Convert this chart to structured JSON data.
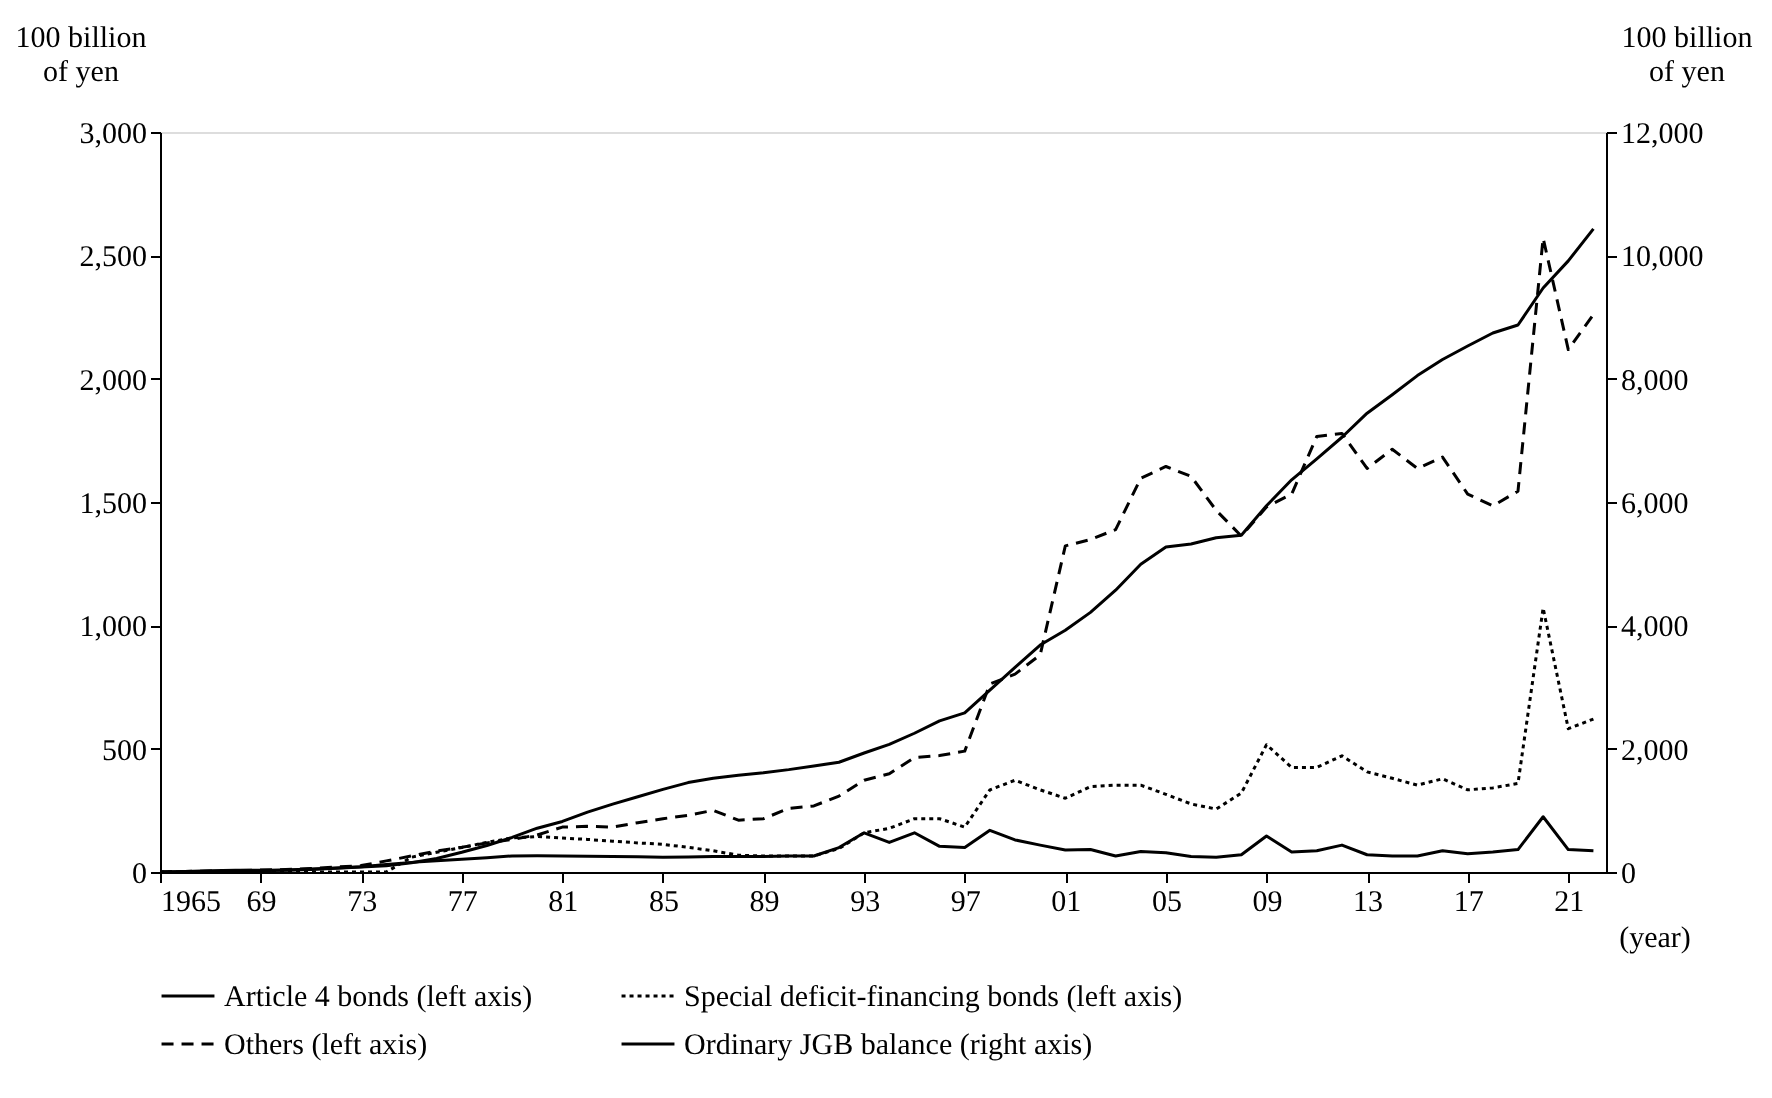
{
  "chart_data": {
    "type": "line",
    "xlabel": "(year)",
    "ylabel": "100 billion\nof yen",
    "y2label": "100 billion\nof yen",
    "x": [
      1965,
      1966,
      1967,
      1968,
      1969,
      1970,
      1971,
      1972,
      1973,
      1974,
      1975,
      1976,
      1977,
      1978,
      1979,
      1980,
      1981,
      1982,
      1983,
      1984,
      1985,
      1986,
      1987,
      1988,
      1989,
      1990,
      1991,
      1992,
      1993,
      1994,
      1995,
      1996,
      1997,
      1998,
      1999,
      2000,
      2001,
      2002,
      2003,
      2004,
      2005,
      2006,
      2007,
      2008,
      2009,
      2010,
      2011,
      2012,
      2013,
      2014,
      2015,
      2016,
      2017,
      2018,
      2019,
      2020,
      2021,
      2022
    ],
    "series": [
      {
        "name": "Article 4 bonds (left axis)",
        "color": "#000000",
        "line_style": "solid",
        "values": [
          0,
          1,
          2,
          3,
          5,
          8,
          12,
          16,
          21,
          30,
          39,
          46,
          52,
          58,
          65,
          66,
          65,
          64,
          63,
          62,
          60,
          61,
          63,
          63,
          63,
          65,
          65,
          99,
          159,
          120,
          159,
          104,
          99,
          169,
          130,
          109,
          89,
          91,
          65,
          83,
          78,
          63,
          60,
          70,
          146,
          81,
          86,
          109,
          70,
          65,
          65,
          86,
          74,
          81,
          91,
          224,
          91,
          86
        ]
      },
      {
        "name": "Special deficit-financing bonds (left axis)",
        "color": "#000000",
        "line_style": "dotted",
        "values": [
          0,
          0,
          0,
          0,
          0,
          0,
          0,
          0,
          0,
          0,
          60,
          80,
          99,
          120,
          138,
          144,
          138,
          132,
          125,
          118,
          112,
          100,
          86,
          68,
          65,
          65,
          65,
          95,
          159,
          177,
          216,
          216,
          182,
          333,
          372,
          333,
          299,
          346,
          352,
          352,
          315,
          276,
          255,
          320,
          516,
          424,
          424,
          471,
          406,
          380,
          352,
          378,
          333,
          341,
          359,
          1070,
          581,
          620
        ]
      },
      {
        "name": "Others (left axis)",
        "color": "#000000",
        "line_style": "dashed",
        "values": [
          0,
          2,
          4,
          6,
          8,
          10,
          14,
          20,
          26,
          45,
          65,
          85,
          100,
          118,
          132,
          150,
          182,
          185,
          182,
          200,
          216,
          230,
          250,
          210,
          216,
          258,
          268,
          308,
          372,
          398,
          464,
          472,
          490,
          762,
          802,
          880,
          1322,
          1348,
          1388,
          1596,
          1644,
          1604,
          1466,
          1362,
          1480,
          1532,
          1766,
          1778,
          1636,
          1714,
          1636,
          1682,
          1532,
          1484,
          1544,
          2570,
          2118,
          2260
        ]
      },
      {
        "name": "Ordinary JGB balance (right axis)",
        "color": "#000000",
        "line_style": "solid",
        "axis": "y2",
        "values": [
          0,
          10,
          20,
          30,
          30,
          30,
          40,
          60,
          80,
          100,
          150,
          220,
          320,
          430,
          560,
          710,
          820,
          970,
          1100,
          1220,
          1340,
          1450,
          1520,
          1570,
          1610,
          1660,
          1720,
          1780,
          1930,
          2070,
          2250,
          2450,
          2580,
          2950,
          3320,
          3680,
          3920,
          4210,
          4570,
          4990,
          5270,
          5320,
          5420,
          5460,
          5940,
          6360,
          6700,
          7050,
          7440,
          7740,
          8050,
          8310,
          8530,
          8740,
          8870,
          9470,
          9910,
          10430
        ]
      }
    ],
    "xlim": [
      1965,
      2022.5
    ],
    "xticks": [
      {
        "value": 1965,
        "label": "1965"
      },
      {
        "value": 1969,
        "label": "69"
      },
      {
        "value": 1973,
        "label": "73"
      },
      {
        "value": 1977,
        "label": "77"
      },
      {
        "value": 1981,
        "label": "81"
      },
      {
        "value": 1985,
        "label": "85"
      },
      {
        "value": 1989,
        "label": "89"
      },
      {
        "value": 1993,
        "label": "93"
      },
      {
        "value": 1997,
        "label": "97"
      },
      {
        "value": 2001,
        "label": "01"
      },
      {
        "value": 2005,
        "label": "05"
      },
      {
        "value": 2009,
        "label": "09"
      },
      {
        "value": 2013,
        "label": "13"
      },
      {
        "value": 2017,
        "label": "17"
      },
      {
        "value": 2021,
        "label": "21"
      }
    ],
    "ylim": [
      0,
      3000
    ],
    "yticks": [
      0,
      500,
      {
        "value": 1000,
        "label": "1,000"
      },
      {
        "value": 1500,
        "label": "1,500"
      },
      {
        "value": 2000,
        "label": "2,000"
      },
      {
        "value": 2500,
        "label": "2,500"
      },
      {
        "value": 3000,
        "label": "3,000"
      }
    ],
    "y2lim": [
      0,
      12000
    ],
    "y2ticks": [
      0,
      {
        "value": 2000,
        "label": "2,000"
      },
      {
        "value": 4000,
        "label": "4,000"
      },
      {
        "value": 6000,
        "label": "6,000"
      },
      {
        "value": 8000,
        "label": "8,000"
      },
      {
        "value": 10000,
        "label": "10,000"
      },
      {
        "value": 12000,
        "label": "12,000"
      }
    ],
    "grid": false,
    "legend": "bottom",
    "marker": "none"
  }
}
